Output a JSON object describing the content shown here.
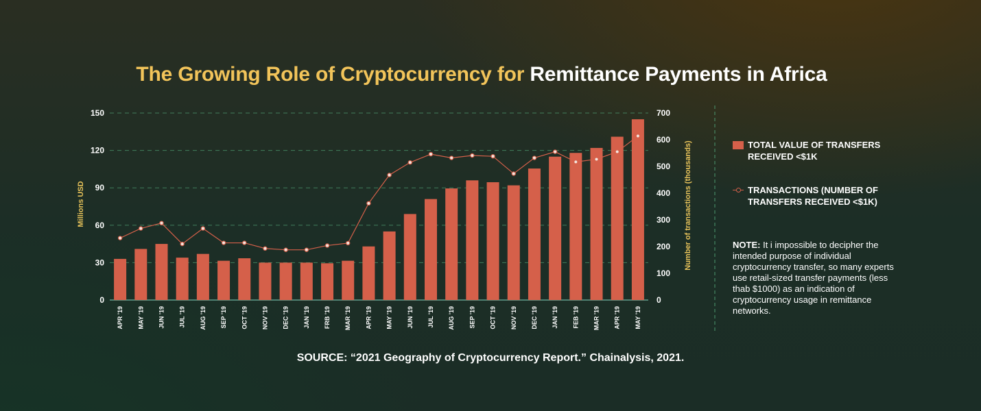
{
  "title": {
    "part1": "The Growing Role of Cryptocurrency for",
    "part2": "Remittance Payments in Africa"
  },
  "legend": {
    "bars": "TOTAL VALUE OF TRANSFERS RECEIVED <$1K",
    "line": "TRANSACTIONS (NUMBER OF TRANSFERS RECEIVED <$1K)"
  },
  "note": {
    "label": "NOTE:",
    "text": "It i impossible to decipher the intended purpose of individual cryptocurrency transfer, so many experts use retail-sized transfer payments (less thab $1000) as an indication of cryptocurrency usage in remittance networks."
  },
  "source": "SOURCE: “2021 Geography of Cryptocurrency Report.” Chainalysis, 2021.",
  "colors": {
    "bar": "#d5604a",
    "line": "#d5604a",
    "grid": "#4c9a70",
    "title_highlight": "#f2c45a",
    "axis_label": "#e8c35a"
  },
  "chart_data": {
    "type": "bar",
    "categories": [
      "APR '19",
      "MAY '19",
      "JUN '19",
      "JUL '19",
      "AUG '19",
      "SEP '19",
      "OCT '19",
      "NOV '19",
      "DEC '19",
      "JAN '19",
      "FRB '19",
      "MAR '19",
      "APR '19",
      "MAY '19",
      "JUN '19",
      "JUL '19",
      "AUG '19",
      "SEP '19",
      "OCT '19",
      "NOV '19",
      "DEC '19",
      "JAN '19",
      "FEB '19",
      "MAR '19",
      "APR '19",
      "MAY '19"
    ],
    "series": [
      {
        "name": "TOTAL VALUE OF TRANSFERS RECEIVED <$1K",
        "type": "bar",
        "axis": "left",
        "values": [
          33,
          41,
          45,
          34,
          37,
          31.5,
          33.5,
          30,
          30,
          30,
          29.5,
          31.5,
          43,
          55,
          69,
          81,
          89.5,
          96,
          94.5,
          92,
          105.5,
          115,
          118,
          122,
          131,
          145
        ]
      },
      {
        "name": "TRANSACTIONS (NUMBER OF TRANSFERS RECEIVED <$1K)",
        "type": "line",
        "axis": "right",
        "values": [
          232,
          268,
          288,
          210,
          268,
          214,
          214,
          193,
          188,
          188,
          204,
          213,
          362,
          468,
          515,
          546,
          532,
          541,
          538,
          473,
          532,
          555,
          517,
          527,
          555,
          614
        ]
      }
    ],
    "ylabel": "Millions USD",
    "ylabel_right": "Number of transactions (thousands)",
    "ylim": [
      0,
      150
    ],
    "ylim_right": [
      0,
      700
    ],
    "yticks": [
      0,
      30,
      60,
      90,
      120,
      150
    ],
    "yticks_right": [
      0,
      100,
      200,
      300,
      400,
      500,
      600,
      700
    ],
    "grid": true,
    "legend_position": "right"
  }
}
